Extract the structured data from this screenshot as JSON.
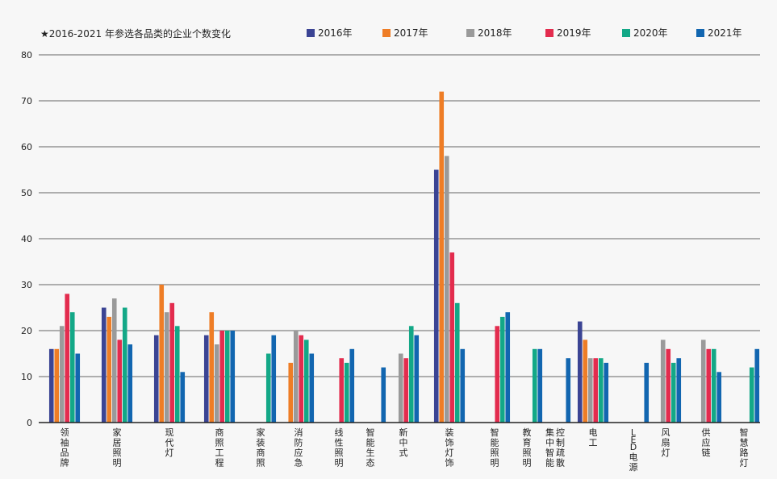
{
  "chart_data": {
    "type": "bar",
    "title": "★2016-2021 年参选各品类的企业个数变化",
    "xlabel": "",
    "ylabel": "",
    "ylim": [
      0,
      80
    ],
    "yticks": [
      0,
      10,
      20,
      30,
      40,
      50,
      60,
      70,
      80
    ],
    "grid": true,
    "legend_position": "top-right",
    "categories": [
      "领袖品牌",
      "家居照明",
      "现代灯",
      "商照工程",
      "家装商照",
      "消防应急",
      "线性照明",
      "智能生态",
      "新中式",
      "装饰灯饰",
      "智能照明",
      "教育照明",
      "集中智能控制疏散",
      "电工",
      "LED电源",
      "风扇灯",
      "供应链",
      "智慧路灯"
    ],
    "category_label_lines": [
      [
        "领袖品牌"
      ],
      [
        "家居照明"
      ],
      [
        "现代灯"
      ],
      [
        "商照工程"
      ],
      [
        "家装商照"
      ],
      [
        "消防应急"
      ],
      [
        "线性照明"
      ],
      [
        "智能生态"
      ],
      [
        "新中式"
      ],
      [
        "装饰灯饰"
      ],
      [
        "智能照明"
      ],
      [
        "教育照明"
      ],
      [
        "集中智能",
        "控制疏散"
      ],
      [
        "电工"
      ],
      [
        "LED电源"
      ],
      [
        "风扇灯"
      ],
      [
        "供应链"
      ],
      [
        "智慧路灯"
      ]
    ],
    "series": [
      {
        "name": "2016年",
        "color": "#3b4494",
        "values": [
          16,
          25,
          19,
          19,
          null,
          null,
          null,
          null,
          null,
          55,
          null,
          null,
          null,
          22,
          null,
          null,
          null,
          null
        ]
      },
      {
        "name": "2017年",
        "color": "#ee7d26",
        "values": [
          16,
          23,
          30,
          24,
          null,
          13,
          null,
          null,
          null,
          72,
          null,
          null,
          null,
          18,
          null,
          null,
          null,
          null
        ]
      },
      {
        "name": "2018年",
        "color": "#9a9a9a",
        "values": [
          21,
          27,
          24,
          17,
          null,
          20,
          null,
          null,
          15,
          58,
          null,
          null,
          null,
          14,
          null,
          18,
          18,
          null
        ]
      },
      {
        "name": "2019年",
        "color": "#e32c4e",
        "values": [
          28,
          18,
          26,
          20,
          null,
          19,
          14,
          null,
          14,
          37,
          21,
          null,
          null,
          14,
          null,
          16,
          16,
          null
        ]
      },
      {
        "name": "2020年",
        "color": "#13a887",
        "values": [
          24,
          25,
          21,
          20,
          15,
          18,
          13,
          null,
          21,
          26,
          23,
          16,
          null,
          14,
          null,
          13,
          16,
          12
        ]
      },
      {
        "name": "2021年",
        "color": "#1266b0",
        "values": [
          15,
          17,
          11,
          20,
          19,
          15,
          16,
          12,
          19,
          16,
          24,
          16,
          14,
          13,
          13,
          14,
          11,
          16
        ]
      }
    ]
  }
}
